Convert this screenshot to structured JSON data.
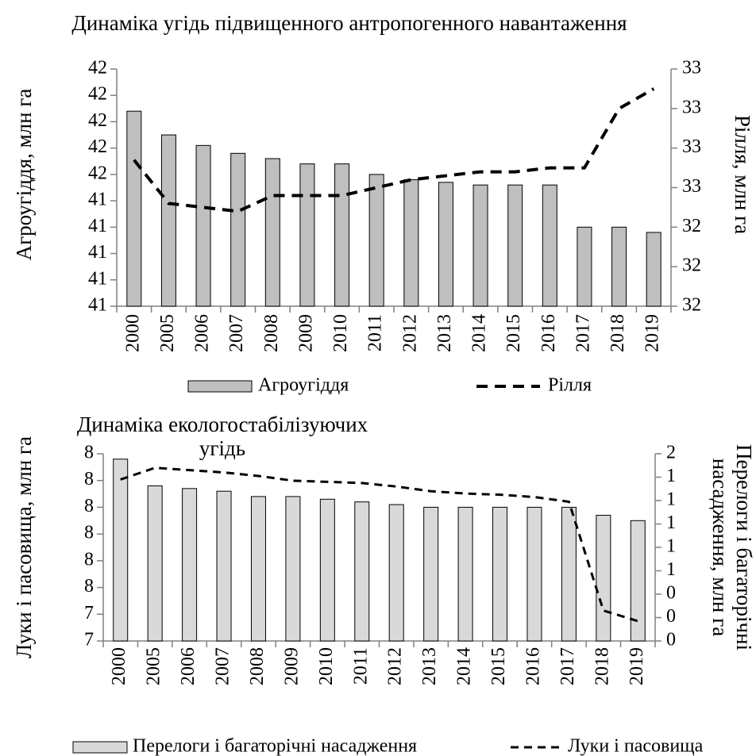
{
  "chart_data": [
    {
      "type": "bar_line",
      "title": "Динаміка угідь підвищенного антропогенного навантаження",
      "ylabel": "Агроугіддя, млн га",
      "y2label": "Рілля, млн га",
      "categories": [
        "2000",
        "2005",
        "2006",
        "2007",
        "2008",
        "2009",
        "2010",
        "2011",
        "2012",
        "2013",
        "2014",
        "2015",
        "2016",
        "2017",
        "2018",
        "2019"
      ],
      "series": [
        {
          "name": "Агроугіддя",
          "type": "bar",
          "color": "#bfbfbf",
          "values": [
            41.74,
            41.65,
            41.61,
            41.58,
            41.56,
            41.54,
            41.54,
            41.5,
            41.48,
            41.47,
            41.46,
            41.46,
            41.46,
            41.3,
            41.3,
            41.28
          ]
        },
        {
          "name": "Рілля",
          "type": "line",
          "axis": "y2",
          "color": "#000000",
          "values": [
            32.57,
            32.46,
            32.45,
            32.44,
            32.48,
            32.48,
            32.48,
            32.5,
            32.52,
            32.53,
            32.54,
            32.54,
            32.55,
            32.55,
            32.7,
            32.75
          ]
        }
      ],
      "ylim": [
        41.0,
        41.9
      ],
      "yticks": [
        {
          "value": 41.0,
          "label": "41"
        },
        {
          "value": 41.1,
          "label": "41"
        },
        {
          "value": 41.2,
          "label": "41"
        },
        {
          "value": 41.3,
          "label": "41"
        },
        {
          "value": 41.4,
          "label": "41"
        },
        {
          "value": 41.5,
          "label": "42"
        },
        {
          "value": 41.6,
          "label": "42"
        },
        {
          "value": 41.7,
          "label": "42"
        },
        {
          "value": 41.8,
          "label": "42"
        },
        {
          "value": 41.9,
          "label": "42"
        }
      ],
      "y2lim": [
        32.2,
        32.8
      ],
      "y2ticks": [
        {
          "value": 32.2,
          "label": "32"
        },
        {
          "value": 32.3,
          "label": "32"
        },
        {
          "value": 32.4,
          "label": "32"
        },
        {
          "value": 32.5,
          "label": "33"
        },
        {
          "value": 32.6,
          "label": "33"
        },
        {
          "value": 32.7,
          "label": "33"
        },
        {
          "value": 32.8,
          "label": "33"
        }
      ],
      "legend": "bottom"
    },
    {
      "type": "bar_line",
      "title": "Динаміка екологостабілізуючих угідь",
      "ylabel": "Луки і пасовища, млн га",
      "y2label": "Перелоги і багаторічні насадження, млн га",
      "categories": [
        "2000",
        "2005",
        "2006",
        "2007",
        "2008",
        "2009",
        "2010",
        "2011",
        "2012",
        "2013",
        "2014",
        "2015",
        "2016",
        "2017",
        "2018",
        "2019"
      ],
      "series": [
        {
          "name": "Перелоги і багаторічні насадження",
          "type": "bar",
          "color": "#d9d9d9",
          "values": [
            7.98,
            7.88,
            7.87,
            7.86,
            7.84,
            7.84,
            7.83,
            7.82,
            7.81,
            7.8,
            7.8,
            7.8,
            7.8,
            7.8,
            7.77,
            7.75
          ]
        },
        {
          "name": "Луки і пасовища",
          "type": "line",
          "axis": "y2",
          "color": "#000000",
          "values": [
            1.38,
            1.48,
            1.46,
            1.44,
            1.41,
            1.37,
            1.36,
            1.35,
            1.32,
            1.28,
            1.26,
            1.25,
            1.23,
            1.19,
            0.26,
            0.17
          ]
        }
      ],
      "ylim": [
        7.3,
        8.0
      ],
      "yticks": [
        {
          "value": 7.3,
          "label": "7"
        },
        {
          "value": 7.4,
          "label": "7"
        },
        {
          "value": 7.5,
          "label": "8"
        },
        {
          "value": 7.6,
          "label": "8"
        },
        {
          "value": 7.7,
          "label": "8"
        },
        {
          "value": 7.8,
          "label": "8"
        },
        {
          "value": 7.9,
          "label": "8"
        },
        {
          "value": 8.0,
          "label": "8"
        }
      ],
      "y2lim": [
        0,
        1.6
      ],
      "y2ticks": [
        {
          "value": 0,
          "label": "0"
        },
        {
          "value": 0.2,
          "label": "0"
        },
        {
          "value": 0.4,
          "label": "0"
        },
        {
          "value": 0.6,
          "label": "1"
        },
        {
          "value": 0.8,
          "label": "1"
        },
        {
          "value": 1.0,
          "label": "1"
        },
        {
          "value": 1.2,
          "label": "1"
        },
        {
          "value": 1.4,
          "label": "1"
        },
        {
          "value": 1.6,
          "label": "2"
        }
      ],
      "legend": "bottom"
    }
  ]
}
